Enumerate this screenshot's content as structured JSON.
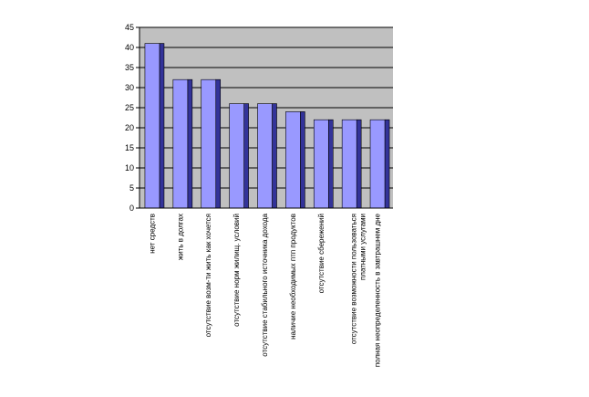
{
  "chart_data": {
    "type": "bar",
    "categories": [
      "нет средств",
      "жить в долгах",
      "отсутствие возм-ти жить как хочется",
      "отсутствие норм жилищ. условий",
      "отсутствие стабильного источника дохода",
      "наличие необходимых птп продуктов",
      "отсутствие сбережений",
      "отсутствие возможности пользоваться платными услугами",
      "полная неопределенность в завтрашнем дне"
    ],
    "category_lines": [
      [
        "нет средств"
      ],
      [
        "жить в долгах"
      ],
      [
        "отсутствие возм-ти жить как хочется"
      ],
      [
        "отсутствие норм жилищ. условий"
      ],
      [
        "отсутствие стабильного источника дохода"
      ],
      [
        "наличие необходимых птп продуктов"
      ],
      [
        "отсутствие сбережений"
      ],
      [
        "отсутствие возможности пользоваться",
        "платными услугами"
      ],
      [
        "полная неопределенность в завтрашнем дне"
      ]
    ],
    "values": [
      41,
      32,
      32,
      26,
      26,
      24,
      22,
      22,
      22
    ],
    "yticks": [
      0,
      5,
      10,
      15,
      20,
      25,
      30,
      35,
      40,
      45
    ],
    "ylim": [
      0,
      45
    ],
    "grid": true,
    "legend": "none",
    "title": "",
    "xlabel": "",
    "ylabel": "",
    "colors": {
      "plot_bg": "#c0c0c0",
      "bar_front": "#9999ff",
      "bar_side": "#333399",
      "bar_top": "#7777cc",
      "gridline": "#000000",
      "axis": "#000000"
    }
  }
}
